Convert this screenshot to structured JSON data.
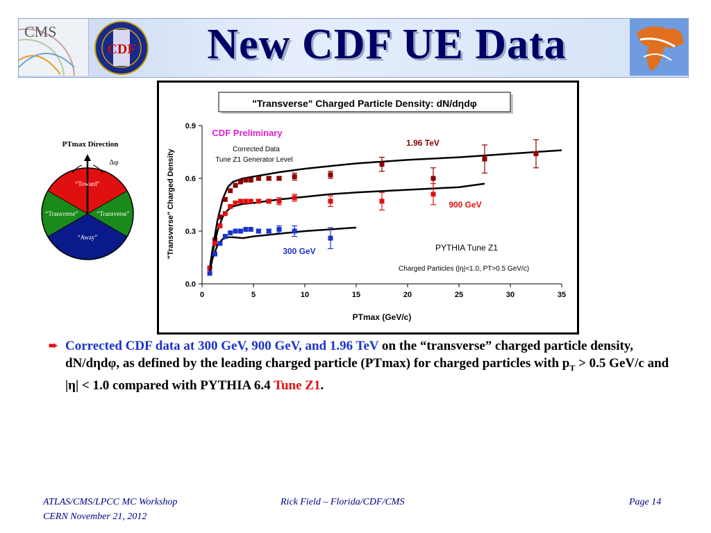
{
  "slide": {
    "title": "New CDF UE Data",
    "logos": {
      "left1": "CMS",
      "left2": "CDF"
    }
  },
  "diagram": {
    "direction_label": "PTmax Direction",
    "dphi_label": "Δφ",
    "regions": {
      "toward": "“Toward”",
      "transverse_left": "“Transverse”",
      "transverse_right": "“Transverse”",
      "away": "“Away”"
    },
    "colors": {
      "toward": "#e01010",
      "transverse": "#1a8a1a",
      "away": "#0a1a8a"
    }
  },
  "chart_data": {
    "type": "scatter",
    "title": "\"Transverse\" Charged Particle Density: dN/dηdφ",
    "xlabel": "PTmax  (GeV/c)",
    "ylabel": "\"Transverse\" Charged Density",
    "xlim": [
      0,
      35
    ],
    "ylim": [
      0.0,
      0.9
    ],
    "xticks": [
      "0",
      "5",
      "10",
      "15",
      "20",
      "25",
      "30",
      "35"
    ],
    "yticks": [
      "0.0",
      "0.3",
      "0.6",
      "0.9"
    ],
    "annotations": {
      "preliminary": "CDF Preliminary",
      "corrected": "Corrected Data",
      "tune": "Tune Z1 Generator Level",
      "pythia": "PYTHIA Tune Z1",
      "cuts": "Charged Particles (|η|<1.0, PT>0.5 GeV/c)"
    },
    "series": [
      {
        "name": "1.96 TeV",
        "color": "#8b0000",
        "points": [
          [
            0.75,
            0.09
          ],
          [
            1.25,
            0.25
          ],
          [
            1.75,
            0.38
          ],
          [
            2.25,
            0.48
          ],
          [
            2.75,
            0.53
          ],
          [
            3.25,
            0.56
          ],
          [
            3.75,
            0.58
          ],
          [
            4.25,
            0.59
          ],
          [
            4.75,
            0.59
          ],
          [
            5.5,
            0.6
          ],
          [
            6.5,
            0.6
          ],
          [
            7.5,
            0.6
          ],
          [
            9.0,
            0.61
          ],
          [
            12.5,
            0.62
          ],
          [
            17.5,
            0.68
          ],
          [
            22.5,
            0.6
          ],
          [
            27.5,
            0.71
          ],
          [
            32.5,
            0.74
          ]
        ],
        "errors": [
          0.005,
          0.005,
          0.005,
          0.005,
          0.005,
          0.005,
          0.005,
          0.005,
          0.005,
          0.01,
          0.01,
          0.01,
          0.02,
          0.02,
          0.04,
          0.06,
          0.08,
          0.08
        ],
        "curve": [
          [
            0.75,
            0.09
          ],
          [
            1.0,
            0.19
          ],
          [
            1.5,
            0.36
          ],
          [
            2.0,
            0.48
          ],
          [
            2.5,
            0.55
          ],
          [
            3.0,
            0.58
          ],
          [
            4.0,
            0.6
          ],
          [
            5.0,
            0.61
          ],
          [
            7.5,
            0.635
          ],
          [
            10,
            0.655
          ],
          [
            12.5,
            0.67
          ],
          [
            15,
            0.685
          ],
          [
            20,
            0.705
          ],
          [
            25,
            0.72
          ],
          [
            30,
            0.74
          ],
          [
            35,
            0.76
          ]
        ]
      },
      {
        "name": "900 GeV",
        "color": "#e01010",
        "points": [
          [
            0.75,
            0.09
          ],
          [
            1.25,
            0.23
          ],
          [
            1.75,
            0.33
          ],
          [
            2.25,
            0.4
          ],
          [
            2.75,
            0.44
          ],
          [
            3.25,
            0.46
          ],
          [
            3.75,
            0.47
          ],
          [
            4.25,
            0.47
          ],
          [
            4.75,
            0.47
          ],
          [
            5.5,
            0.47
          ],
          [
            6.5,
            0.47
          ],
          [
            7.5,
            0.47
          ],
          [
            9.0,
            0.49
          ],
          [
            12.5,
            0.47
          ],
          [
            17.5,
            0.47
          ],
          [
            22.5,
            0.51
          ]
        ],
        "errors": [
          0.005,
          0.005,
          0.005,
          0.005,
          0.005,
          0.005,
          0.005,
          0.005,
          0.005,
          0.01,
          0.01,
          0.02,
          0.02,
          0.03,
          0.05,
          0.06
        ],
        "curve": [
          [
            0.75,
            0.08
          ],
          [
            1.0,
            0.17
          ],
          [
            1.5,
            0.3
          ],
          [
            2.0,
            0.38
          ],
          [
            2.5,
            0.42
          ],
          [
            3.0,
            0.44
          ],
          [
            4.0,
            0.455
          ],
          [
            5.0,
            0.46
          ],
          [
            7.5,
            0.48
          ],
          [
            10,
            0.495
          ],
          [
            12.5,
            0.51
          ],
          [
            15,
            0.52
          ],
          [
            20,
            0.535
          ],
          [
            25,
            0.55
          ],
          [
            27.5,
            0.57
          ]
        ]
      },
      {
        "name": "300 GeV",
        "color": "#1a33cc",
        "points": [
          [
            0.75,
            0.06
          ],
          [
            1.25,
            0.17
          ],
          [
            1.75,
            0.23
          ],
          [
            2.25,
            0.27
          ],
          [
            2.75,
            0.29
          ],
          [
            3.25,
            0.3
          ],
          [
            3.75,
            0.3
          ],
          [
            4.25,
            0.31
          ],
          [
            4.75,
            0.31
          ],
          [
            5.5,
            0.3
          ],
          [
            6.5,
            0.3
          ],
          [
            7.5,
            0.31
          ],
          [
            9.0,
            0.3
          ],
          [
            12.5,
            0.26
          ]
        ],
        "errors": [
          0.005,
          0.005,
          0.005,
          0.005,
          0.005,
          0.005,
          0.005,
          0.005,
          0.005,
          0.01,
          0.01,
          0.02,
          0.03,
          0.06
        ],
        "curve": [
          [
            0.75,
            0.07
          ],
          [
            1.0,
            0.14
          ],
          [
            1.5,
            0.22
          ],
          [
            2.0,
            0.255
          ],
          [
            2.5,
            0.265
          ],
          [
            3.0,
            0.265
          ],
          [
            4.0,
            0.26
          ],
          [
            5.0,
            0.27
          ],
          [
            7.5,
            0.285
          ],
          [
            10,
            0.3
          ],
          [
            12.5,
            0.31
          ],
          [
            15,
            0.32
          ]
        ]
      }
    ]
  },
  "bullet": {
    "blue_part": "Corrected CDF data at 300 GeV, 900 GeV, and 1.96 TeV",
    "part2": " on the “transverse” charged particle density, dN/dηdφ, as defined by the leading charged particle (PTmax) for charged particles with p",
    "sub_T": "T",
    "part3": " > 0.5 GeV/c and |η| < 1.0 compared with PYTHIA 6.4 ",
    "red_part": "Tune Z1",
    "end": "."
  },
  "footer": {
    "left1": "ATLAS/CMS/LPCC MC Workshop",
    "left2": "CERN November 21, 2012",
    "center": "Rick Field – Florida/CDF/CMS",
    "right": "Page 14"
  }
}
